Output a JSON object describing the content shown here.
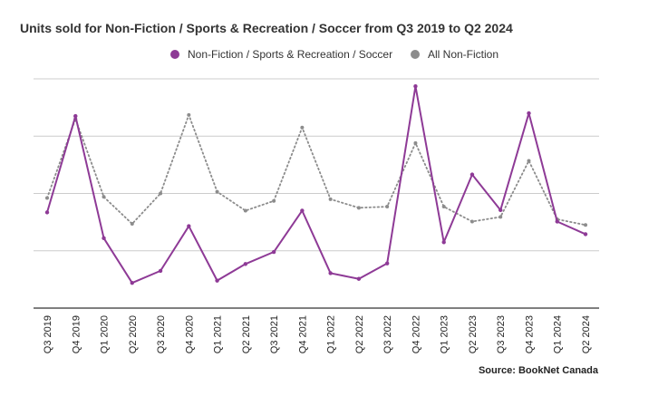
{
  "chart_data": {
    "type": "line",
    "title": "Units sold for Non-Fiction / Sports & Recreation / Soccer from Q3 2019 to Q2 2024",
    "categories": [
      "Q3 2019",
      "Q4 2019",
      "Q1 2020",
      "Q2 2020",
      "Q3 2020",
      "Q4 2020",
      "Q1 2021",
      "Q2 2021",
      "Q3 2021",
      "Q4 2021",
      "Q1 2022",
      "Q2 2022",
      "Q3 2022",
      "Q4 2022",
      "Q1 2023",
      "Q2 2023",
      "Q3 2023",
      "Q4 2023",
      "Q1 2024",
      "Q2 2024"
    ],
    "series": [
      {
        "name": "Non-Fiction / Sports & Recreation / Soccer",
        "color": "#8e3a96",
        "style": "solid",
        "values": [
          1.67,
          3.35,
          1.22,
          0.44,
          0.65,
          1.43,
          0.48,
          0.77,
          0.98,
          1.7,
          0.61,
          0.51,
          0.78,
          3.87,
          1.15,
          2.33,
          1.71,
          3.4,
          1.51,
          1.29
        ]
      },
      {
        "name": "All Non-Fiction",
        "color": "#8c8c8c",
        "style": "dotted",
        "values": [
          1.92,
          3.3,
          1.94,
          1.47,
          2.0,
          3.37,
          2.03,
          1.7,
          1.87,
          3.15,
          1.9,
          1.75,
          1.77,
          2.88,
          1.77,
          1.51,
          1.59,
          2.57,
          1.55,
          1.45
        ]
      }
    ],
    "ylim": [
      0,
      4
    ],
    "gridlines": [
      0,
      1,
      2,
      3,
      4
    ],
    "y_tick_labels_shown": false,
    "grid": true,
    "legend_position": "top-center",
    "source": "Source: BookNet Canada"
  }
}
